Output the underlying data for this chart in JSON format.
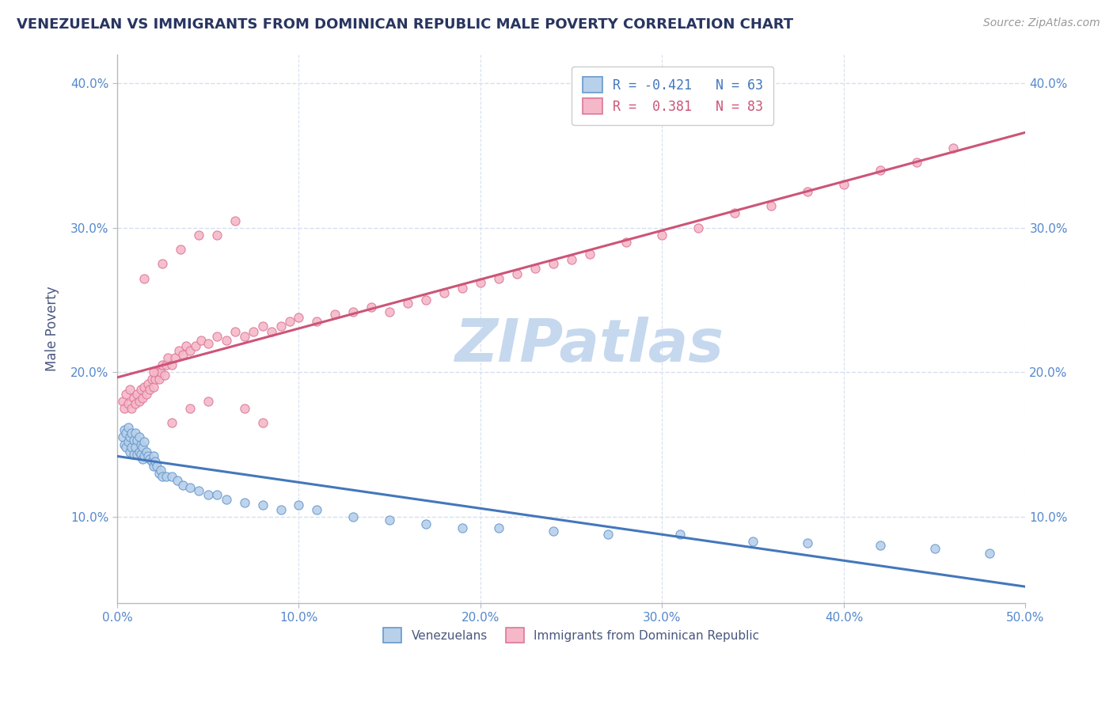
{
  "title": "VENEZUELAN VS IMMIGRANTS FROM DOMINICAN REPUBLIC MALE POVERTY CORRELATION CHART",
  "source": "Source: ZipAtlas.com",
  "ylabel": "Male Poverty",
  "xlim": [
    0.0,
    0.5
  ],
  "ylim": [
    0.04,
    0.42
  ],
  "xtick_labels": [
    "0.0%",
    "10.0%",
    "20.0%",
    "30.0%",
    "40.0%",
    "50.0%"
  ],
  "xtick_vals": [
    0.0,
    0.1,
    0.2,
    0.3,
    0.4,
    0.5
  ],
  "ytick_labels": [
    "10.0%",
    "20.0%",
    "30.0%",
    "40.0%"
  ],
  "ytick_vals": [
    0.1,
    0.2,
    0.3,
    0.4
  ],
  "series1_name": "Venezuelans",
  "series1_R": -0.421,
  "series1_N": 63,
  "series1_color": "#b8d0ea",
  "series1_edge_color": "#6699cc",
  "series1_line_color": "#4477bb",
  "series2_name": "Immigrants from Dominican Republic",
  "series2_R": 0.381,
  "series2_N": 83,
  "series2_color": "#f5b8c8",
  "series2_edge_color": "#dd7799",
  "series2_line_color": "#cc5577",
  "background_color": "#ffffff",
  "watermark_color": "#c5d8ee",
  "grid_color": "#d5dff0",
  "title_color": "#283560",
  "axis_label_color": "#4a5880",
  "tick_color": "#5588cc",
  "series1_x": [
    0.003,
    0.004,
    0.004,
    0.005,
    0.005,
    0.006,
    0.006,
    0.007,
    0.007,
    0.008,
    0.008,
    0.009,
    0.009,
    0.01,
    0.01,
    0.011,
    0.011,
    0.012,
    0.012,
    0.013,
    0.013,
    0.014,
    0.014,
    0.015,
    0.015,
    0.016,
    0.017,
    0.018,
    0.019,
    0.02,
    0.02,
    0.021,
    0.022,
    0.023,
    0.024,
    0.025,
    0.027,
    0.03,
    0.033,
    0.036,
    0.04,
    0.045,
    0.05,
    0.055,
    0.06,
    0.07,
    0.08,
    0.09,
    0.1,
    0.11,
    0.13,
    0.15,
    0.17,
    0.19,
    0.21,
    0.24,
    0.27,
    0.31,
    0.35,
    0.38,
    0.42,
    0.45,
    0.48
  ],
  "series1_y": [
    0.155,
    0.15,
    0.16,
    0.148,
    0.158,
    0.152,
    0.162,
    0.145,
    0.155,
    0.148,
    0.158,
    0.143,
    0.153,
    0.148,
    0.158,
    0.143,
    0.153,
    0.145,
    0.155,
    0.143,
    0.15,
    0.14,
    0.148,
    0.142,
    0.152,
    0.145,
    0.142,
    0.14,
    0.138,
    0.142,
    0.135,
    0.138,
    0.135,
    0.13,
    0.132,
    0.128,
    0.128,
    0.128,
    0.125,
    0.122,
    0.12,
    0.118,
    0.115,
    0.115,
    0.112,
    0.11,
    0.108,
    0.105,
    0.108,
    0.105,
    0.1,
    0.098,
    0.095,
    0.092,
    0.092,
    0.09,
    0.088,
    0.088,
    0.083,
    0.082,
    0.08,
    0.078,
    0.075
  ],
  "series2_x": [
    0.003,
    0.004,
    0.005,
    0.006,
    0.007,
    0.008,
    0.009,
    0.01,
    0.011,
    0.012,
    0.013,
    0.014,
    0.015,
    0.016,
    0.017,
    0.018,
    0.019,
    0.02,
    0.021,
    0.022,
    0.023,
    0.024,
    0.025,
    0.026,
    0.027,
    0.028,
    0.03,
    0.032,
    0.034,
    0.036,
    0.038,
    0.04,
    0.043,
    0.046,
    0.05,
    0.055,
    0.06,
    0.065,
    0.07,
    0.075,
    0.08,
    0.085,
    0.09,
    0.095,
    0.1,
    0.11,
    0.12,
    0.13,
    0.14,
    0.15,
    0.16,
    0.17,
    0.18,
    0.19,
    0.2,
    0.21,
    0.22,
    0.23,
    0.24,
    0.25,
    0.26,
    0.28,
    0.3,
    0.32,
    0.34,
    0.36,
    0.38,
    0.4,
    0.42,
    0.44,
    0.46,
    0.015,
    0.025,
    0.035,
    0.045,
    0.055,
    0.065,
    0.02,
    0.03,
    0.04,
    0.05,
    0.07,
    0.08
  ],
  "series2_y": [
    0.18,
    0.175,
    0.185,
    0.178,
    0.188,
    0.175,
    0.182,
    0.178,
    0.185,
    0.18,
    0.188,
    0.182,
    0.19,
    0.185,
    0.192,
    0.188,
    0.195,
    0.19,
    0.195,
    0.2,
    0.195,
    0.2,
    0.205,
    0.198,
    0.205,
    0.21,
    0.205,
    0.21,
    0.215,
    0.212,
    0.218,
    0.215,
    0.218,
    0.222,
    0.22,
    0.225,
    0.222,
    0.228,
    0.225,
    0.228,
    0.232,
    0.228,
    0.232,
    0.235,
    0.238,
    0.235,
    0.24,
    0.242,
    0.245,
    0.242,
    0.248,
    0.25,
    0.255,
    0.258,
    0.262,
    0.265,
    0.268,
    0.272,
    0.275,
    0.278,
    0.282,
    0.29,
    0.295,
    0.3,
    0.31,
    0.315,
    0.325,
    0.33,
    0.34,
    0.345,
    0.355,
    0.265,
    0.275,
    0.285,
    0.295,
    0.295,
    0.305,
    0.2,
    0.165,
    0.175,
    0.18,
    0.175,
    0.165
  ]
}
